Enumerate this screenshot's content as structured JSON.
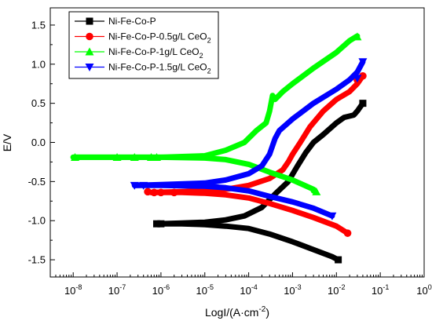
{
  "chart_data": {
    "type": "line",
    "title": "",
    "xlabel": "LogI/(A·cm",
    "xlabel_sup": "-2",
    "xlabel_tail": ")",
    "ylabel": "E/V",
    "x_scale": "log",
    "xlim": [
      3e-09,
      1
    ],
    "ylim": [
      -1.72,
      1.72
    ],
    "x_ticks": [
      {
        "base": "10",
        "exp": "-8",
        "value": 1e-08
      },
      {
        "base": "10",
        "exp": "-7",
        "value": 1e-07
      },
      {
        "base": "10",
        "exp": "-6",
        "value": 1e-06
      },
      {
        "base": "10",
        "exp": "-5",
        "value": 1e-05
      },
      {
        "base": "10",
        "exp": "-4",
        "value": 0.0001
      },
      {
        "base": "10",
        "exp": "-3",
        "value": 0.001
      },
      {
        "base": "10",
        "exp": "-2",
        "value": 0.01
      },
      {
        "base": "10",
        "exp": "-1",
        "value": 0.1
      },
      {
        "base": "10",
        "exp": "0",
        "value": 1
      }
    ],
    "y_ticks": [
      {
        "label": "1.5",
        "value": 1.5
      },
      {
        "label": "1.0",
        "value": 1.0
      },
      {
        "label": "0.5",
        "value": 0.5
      },
      {
        "label": "0.0",
        "value": 0.0
      },
      {
        "label": "-0.5",
        "value": -0.5
      },
      {
        "label": "-1.0",
        "value": -1.0
      },
      {
        "label": "-1.5",
        "value": -1.5
      }
    ],
    "grid": false,
    "legend_position": "top-left",
    "series": [
      {
        "name": "Ni-Fe-Co-P",
        "name_sub": "",
        "color": "#000000",
        "marker": "square",
        "cathodic": [
          [
            8e-07,
            -1.04
          ],
          [
            1e-06,
            -1.04
          ],
          [
            3e-06,
            -1.04
          ],
          [
            1e-05,
            -1.05
          ],
          [
            3e-05,
            -1.07
          ],
          [
            0.0001,
            -1.1
          ],
          [
            0.0003,
            -1.17
          ],
          [
            0.001,
            -1.27
          ],
          [
            0.003,
            -1.37
          ],
          [
            0.008,
            -1.46
          ],
          [
            0.011,
            -1.5
          ]
        ],
        "anodic": [
          [
            8e-07,
            -1.04
          ],
          [
            3e-06,
            -1.03
          ],
          [
            1e-05,
            -1.02
          ],
          [
            3e-05,
            -0.99
          ],
          [
            8e-05,
            -0.94
          ],
          [
            0.0002,
            -0.83
          ],
          [
            0.0004,
            -0.66
          ],
          [
            0.0008,
            -0.5
          ],
          [
            0.0013,
            -0.3
          ],
          [
            0.002,
            -0.13
          ],
          [
            0.003,
            0.0
          ],
          [
            0.005,
            0.1
          ],
          [
            0.01,
            0.25
          ],
          [
            0.015,
            0.32
          ],
          [
            0.025,
            0.35
          ],
          [
            0.03,
            0.4
          ],
          [
            0.04,
            0.5
          ]
        ],
        "markers": [
          [
            8e-07,
            -1.04
          ],
          [
            1e-06,
            -1.04
          ],
          [
            0.011,
            -1.5
          ],
          [
            0.04,
            0.5
          ]
        ]
      },
      {
        "name": "Ni-Fe-Co-P-0.5g/L CeO",
        "name_sub": "2",
        "color": "#ff0000",
        "marker": "circle",
        "cathodic": [
          [
            6e-07,
            -0.64
          ],
          [
            1e-06,
            -0.64
          ],
          [
            3e-06,
            -0.64
          ],
          [
            1e-05,
            -0.65
          ],
          [
            3e-05,
            -0.67
          ],
          [
            0.0001,
            -0.71
          ],
          [
            0.0003,
            -0.78
          ],
          [
            0.001,
            -0.87
          ],
          [
            0.003,
            -0.96
          ],
          [
            0.01,
            -1.07
          ],
          [
            0.018,
            -1.16
          ]
        ],
        "anodic": [
          [
            6e-07,
            -0.64
          ],
          [
            3e-06,
            -0.63
          ],
          [
            1e-05,
            -0.62
          ],
          [
            3e-05,
            -0.6
          ],
          [
            0.0001,
            -0.55
          ],
          [
            0.0003,
            -0.46
          ],
          [
            0.0006,
            -0.35
          ],
          [
            0.0008,
            -0.25
          ],
          [
            0.001,
            -0.15
          ],
          [
            0.0015,
            0.0
          ],
          [
            0.0025,
            0.2
          ],
          [
            0.005,
            0.4
          ],
          [
            0.01,
            0.55
          ],
          [
            0.02,
            0.65
          ],
          [
            0.03,
            0.75
          ],
          [
            0.04,
            0.85
          ]
        ],
        "markers": [
          [
            5e-07,
            -0.63
          ],
          [
            7e-07,
            -0.64
          ],
          [
            1e-06,
            -0.64
          ],
          [
            2e-06,
            -0.64
          ],
          [
            0.018,
            -1.16
          ],
          [
            0.03,
            0.8
          ],
          [
            0.04,
            0.85
          ]
        ]
      },
      {
        "name": "Ni-Fe-Co-P-1g/L CeO",
        "name_sub": "2",
        "color": "#00ff00",
        "marker": "triangle-up",
        "cathodic": [
          [
            1e-08,
            -0.19
          ],
          [
            1e-07,
            -0.19
          ],
          [
            1e-06,
            -0.19
          ],
          [
            1e-05,
            -0.2
          ],
          [
            3e-05,
            -0.22
          ],
          [
            0.0001,
            -0.28
          ],
          [
            0.0003,
            -0.38
          ],
          [
            0.001,
            -0.48
          ],
          [
            0.003,
            -0.6
          ],
          [
            0.003,
            -0.62
          ]
        ],
        "anodic": [
          [
            1e-08,
            -0.19
          ],
          [
            1e-06,
            -0.19
          ],
          [
            1e-05,
            -0.17
          ],
          [
            3e-05,
            -0.1
          ],
          [
            8e-05,
            0.0
          ],
          [
            0.00015,
            0.15
          ],
          [
            0.00025,
            0.25
          ],
          [
            0.0003,
            0.4
          ],
          [
            0.00035,
            0.6
          ],
          [
            0.0004,
            0.55
          ],
          [
            0.0006,
            0.65
          ],
          [
            0.001,
            0.75
          ],
          [
            0.003,
            0.95
          ],
          [
            0.01,
            1.15
          ],
          [
            0.02,
            1.3
          ],
          [
            0.03,
            1.36
          ]
        ],
        "markers": [
          [
            1.1e-08,
            -0.19
          ],
          [
            1e-07,
            -0.19
          ],
          [
            2.5e-07,
            -0.19
          ],
          [
            6e-07,
            -0.19
          ],
          [
            8e-07,
            -0.19
          ],
          [
            0.0035,
            -0.63
          ],
          [
            0.03,
            1.35
          ]
        ]
      },
      {
        "name": "Ni-Fe-Co-P-1.5g/L CeO",
        "name_sub": "2",
        "color": "#0000ff",
        "marker": "triangle-down",
        "cathodic": [
          [
            2.5e-07,
            -0.55
          ],
          [
            1e-06,
            -0.55
          ],
          [
            1e-05,
            -0.56
          ],
          [
            3e-05,
            -0.58
          ],
          [
            0.0001,
            -0.62
          ],
          [
            0.0003,
            -0.69
          ],
          [
            0.001,
            -0.76
          ],
          [
            0.003,
            -0.84
          ],
          [
            0.008,
            -0.94
          ]
        ],
        "anodic": [
          [
            2.5e-07,
            -0.55
          ],
          [
            1e-06,
            -0.54
          ],
          [
            1e-05,
            -0.52
          ],
          [
            3e-05,
            -0.48
          ],
          [
            0.0001,
            -0.4
          ],
          [
            0.0002,
            -0.3
          ],
          [
            0.0003,
            -0.15
          ],
          [
            0.0004,
            0.05
          ],
          [
            0.0005,
            0.15
          ],
          [
            0.001,
            0.3
          ],
          [
            0.003,
            0.5
          ],
          [
            0.01,
            0.68
          ],
          [
            0.02,
            0.8
          ],
          [
            0.03,
            0.9
          ],
          [
            0.04,
            1.03
          ]
        ],
        "markers": [
          [
            2.5e-07,
            -0.55
          ],
          [
            4e-07,
            -0.55
          ],
          [
            0.008,
            -0.94
          ],
          [
            0.03,
            0.82
          ],
          [
            0.04,
            1.03
          ]
        ]
      }
    ]
  }
}
